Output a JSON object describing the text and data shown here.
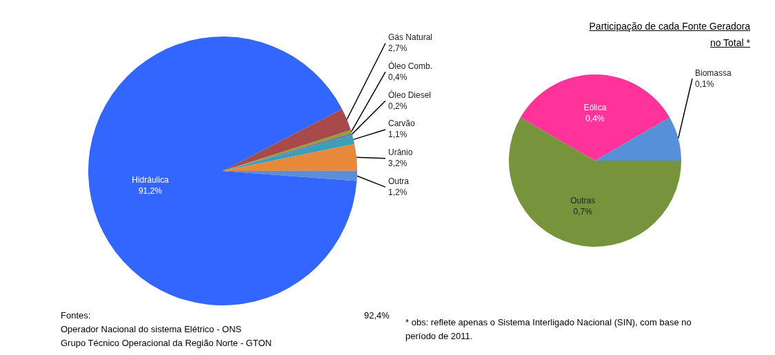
{
  "chart_data": [
    {
      "type": "pie",
      "categories": [
        "Gás Natural",
        "Óleo Comb.",
        "Óleo Diesel",
        "Carvão",
        "Urânio",
        "Outra",
        "Hidráulica"
      ],
      "values": [
        2.7,
        0.4,
        0.2,
        1.1,
        3.2,
        1.2,
        91.2
      ],
      "value_labels": [
        "2,7%",
        "0,4%",
        "0,2%",
        "1,1%",
        "3,2%",
        "1,2%",
        "91,2%"
      ],
      "colors": [
        "#a84a4a",
        "#8ca040",
        "#7b5fa0",
        "#3aa0b8",
        "#e8883a",
        "#5a8ed8",
        "#3366ff"
      ],
      "legend": false,
      "annotations": [
        "92,4%",
        "Fontes:",
        "Operador Nacional do sistema Elétrico - ONS",
        "Grupo Técnico Operacional da Região Norte - GTON"
      ]
    },
    {
      "type": "pie",
      "title": "Participação de cada Fonte Geradora no Total *",
      "categories": [
        "Eólica",
        "Biomassa",
        "Outras"
      ],
      "values": [
        0.4,
        0.1,
        0.7
      ],
      "value_labels": [
        "0,4%",
        "0,1%",
        "0,7%"
      ],
      "colors": [
        "#ff3399",
        "#5590d8",
        "#77933c"
      ],
      "legend": false,
      "annotations": [
        "* obs: reflete apenas o Sistema Interligado Nacional (SIN), com base no período de 2011."
      ]
    }
  ]
}
